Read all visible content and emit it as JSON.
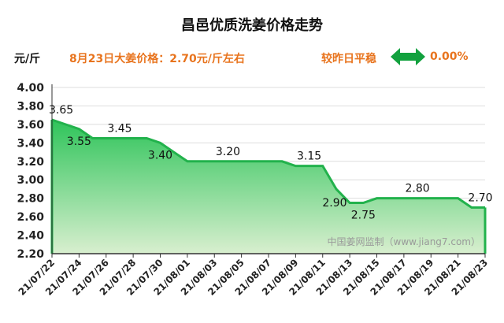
{
  "header": {
    "title": "昌邑优质洗姜价格走势",
    "unit": "元/斤",
    "price_note": "8月23日大姜价格：2.70元/斤左右",
    "compare_label": "较昨日平稳",
    "compare_value": "0.00%",
    "arrow_icon": "double-arrow-icon"
  },
  "colors": {
    "line": "#22b24c",
    "fill_top": "#2ec45a",
    "fill_bottom": "#d8efcf",
    "accent": "#e8741e",
    "arrow": "#12a13e"
  },
  "chart_data": {
    "type": "area",
    "title": "昌邑优质洗姜价格走势",
    "ylabel": "元/斤",
    "ylim": [
      2.2,
      4.0
    ],
    "yticks": [
      "4.00",
      "3.80",
      "3.60",
      "3.40",
      "3.20",
      "3.00",
      "2.80",
      "2.60",
      "2.40",
      "2.20"
    ],
    "ytick_values": [
      4.0,
      3.8,
      3.6,
      3.4,
      3.2,
      3.0,
      2.8,
      2.6,
      2.4,
      2.2
    ],
    "x_labels": [
      "21/07/22",
      "21/07/24",
      "21/07/26",
      "21/07/28",
      "21/07/30",
      "21/08/01",
      "21/08/03",
      "21/08/05",
      "21/08/07",
      "21/08/09",
      "21/08/11",
      "21/08/13",
      "21/08/15",
      "21/08/17",
      "21/08/19",
      "21/08/21",
      "21/08/23"
    ],
    "x": [
      "21/07/22",
      "21/07/23",
      "21/07/24",
      "21/07/25",
      "21/07/26",
      "21/07/27",
      "21/07/28",
      "21/07/29",
      "21/07/30",
      "21/07/31",
      "21/08/01",
      "21/08/02",
      "21/08/03",
      "21/08/04",
      "21/08/05",
      "21/08/06",
      "21/08/07",
      "21/08/08",
      "21/08/09",
      "21/08/10",
      "21/08/11",
      "21/08/12",
      "21/08/13",
      "21/08/14",
      "21/08/15",
      "21/08/16",
      "21/08/17",
      "21/08/18",
      "21/08/19",
      "21/08/20",
      "21/08/21",
      "21/08/22",
      "21/08/23"
    ],
    "values": [
      3.65,
      3.6,
      3.55,
      3.45,
      3.45,
      3.45,
      3.45,
      3.45,
      3.4,
      3.3,
      3.2,
      3.2,
      3.2,
      3.2,
      3.2,
      3.2,
      3.2,
      3.2,
      3.15,
      3.15,
      3.15,
      2.9,
      2.75,
      2.75,
      2.8,
      2.8,
      2.8,
      2.8,
      2.8,
      2.8,
      2.8,
      2.7,
      2.7
    ],
    "labels": [
      {
        "index": 0,
        "text": "3.65",
        "pos": "above"
      },
      {
        "index": 2,
        "text": "3.55",
        "pos": "below"
      },
      {
        "index": 5,
        "text": "3.45",
        "pos": "above"
      },
      {
        "index": 8,
        "text": "3.40",
        "pos": "below"
      },
      {
        "index": 13,
        "text": "3.20",
        "pos": "above"
      },
      {
        "index": 19,
        "text": "3.15",
        "pos": "above"
      },
      {
        "index": 21,
        "text": "2.90",
        "pos": "left"
      },
      {
        "index": 23,
        "text": "2.75",
        "pos": "below"
      },
      {
        "index": 27,
        "text": "2.80",
        "pos": "above"
      },
      {
        "index": 32,
        "text": "2.70",
        "pos": "above"
      }
    ],
    "watermark": "中国姜网监制（www.jiang7.com）"
  }
}
